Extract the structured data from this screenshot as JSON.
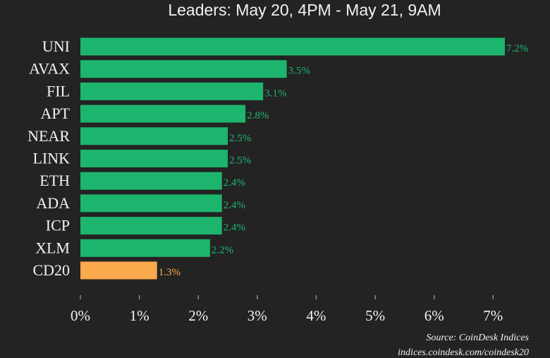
{
  "chart_data": {
    "type": "bar",
    "orientation": "horizontal",
    "title": "Leaders: May 20, 4PM - May 21, 9AM",
    "categories": [
      "UNI",
      "AVAX",
      "FIL",
      "APT",
      "NEAR",
      "LINK",
      "ETH",
      "ADA",
      "ICP",
      "XLM",
      "CD20"
    ],
    "values": [
      7.2,
      3.5,
      3.1,
      2.8,
      2.5,
      2.5,
      2.4,
      2.4,
      2.4,
      2.2,
      1.3
    ],
    "value_labels": [
      "7.2%",
      "3.5%",
      "3.1%",
      "2.8%",
      "2.5%",
      "2.5%",
      "2.4%",
      "2.4%",
      "2.4%",
      "2.2%",
      "1.3%"
    ],
    "x_ticks": [
      0,
      1,
      2,
      3,
      4,
      5,
      6,
      7
    ],
    "x_tick_labels": [
      "0%",
      "1%",
      "2%",
      "3%",
      "4%",
      "5%",
      "6%",
      "7%"
    ],
    "xlim": [
      0,
      7.3
    ],
    "xlabel": "",
    "ylabel": "",
    "grid": false,
    "colors": {
      "background": "#232323",
      "bar": "#1db56d",
      "highlight_bar": "#fba94d",
      "text": "#f2f2f2",
      "tick_mark": "#9a9a9a"
    },
    "highlight_category": "CD20",
    "source_lines": [
      "Source: CoinDesk Indices",
      "indices.coindesk.com/coindesk20"
    ]
  }
}
